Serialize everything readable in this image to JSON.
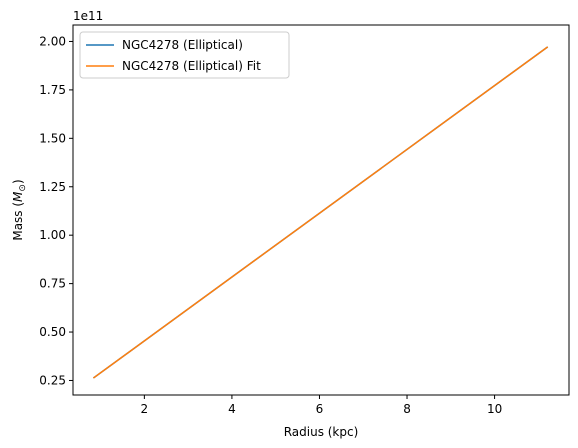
{
  "chart_data": {
    "type": "line",
    "xlabel": "Radius (kpc)",
    "ylabel_main": "Mass (",
    "ylabel_symbol": "M",
    "ylabel_subscript": "⊙",
    "ylabel_end": ")",
    "y_offset_label": "1e11",
    "x_ticks": [
      2,
      4,
      6,
      8,
      10
    ],
    "x_tick_labels": [
      "2",
      "4",
      "6",
      "8",
      "10"
    ],
    "y_ticks": [
      0.25,
      0.5,
      0.75,
      1.0,
      1.25,
      1.5,
      1.75,
      2.0
    ],
    "y_tick_labels": [
      "0.25",
      "0.50",
      "0.75",
      "1.00",
      "1.25",
      "1.50",
      "1.75",
      "2.00"
    ],
    "xlim": [
      0.37,
      11.7
    ],
    "ylim": [
      0.175,
      2.085
    ],
    "grid": false,
    "legend_position": "upper-left",
    "series": [
      {
        "name": "NGC4278 (Elliptical)",
        "color": "#1f77b4",
        "x": [
          0.85,
          11.2
        ],
        "y": [
          0.265,
          1.97
        ]
      },
      {
        "name": "NGC4278 (Elliptical) Fit",
        "color": "#ff7f0e",
        "x": [
          0.85,
          11.2
        ],
        "y": [
          0.265,
          1.97
        ]
      }
    ]
  }
}
